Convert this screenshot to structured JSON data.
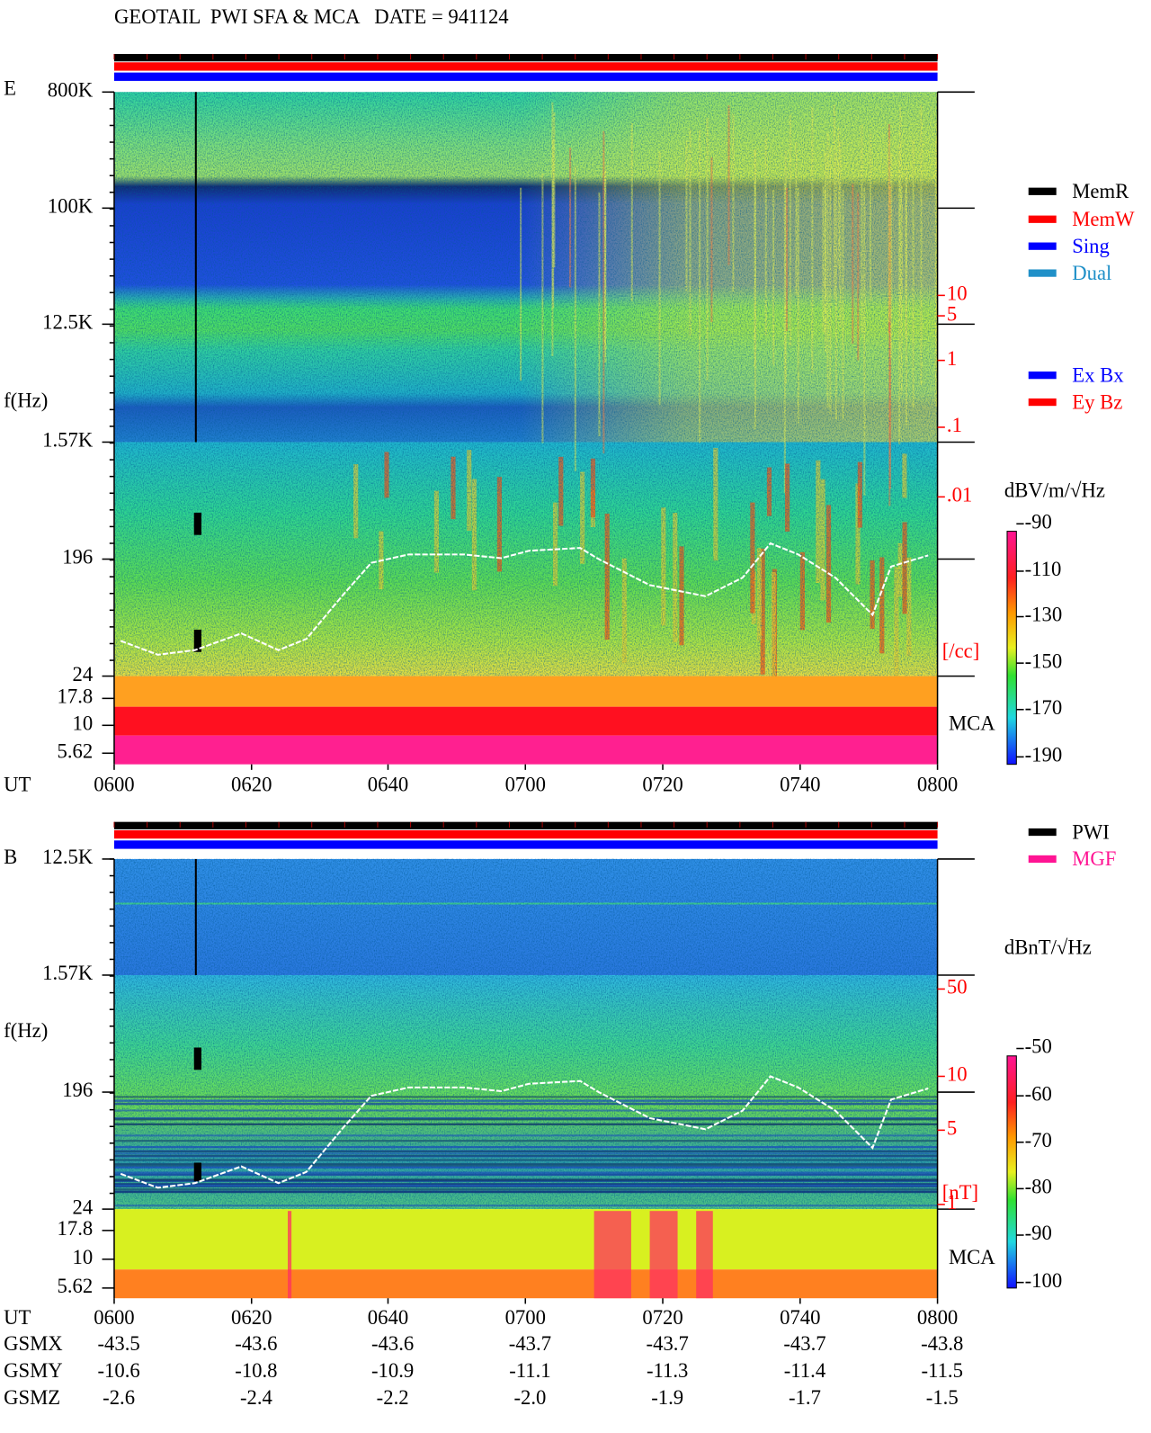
{
  "header": {
    "title": "GEOTAIL  PWI SFA & MCA   DATE = 941124"
  },
  "panels": [
    {
      "label": "E",
      "y_axis_label": "f(Hz)",
      "freq_ticks": [
        "800K",
        "100K",
        "12.5K",
        "1.57K",
        "196",
        "24",
        "17.8",
        "10",
        "5.62"
      ],
      "mca_label": "MCA",
      "right_ticks": [
        "10",
        "5",
        "1",
        ".1",
        ".01"
      ],
      "right_unit": "[/cc]",
      "colorbar_label": "dBV/m/√Hz",
      "colorbar_ticks": [
        "-90",
        "-110",
        "-130",
        "-150",
        "-170",
        "-190"
      ],
      "legend": [
        "MemR",
        "MemW",
        "Sing",
        "Dual",
        "Ex Bx",
        "Ey Bz"
      ]
    },
    {
      "label": "B",
      "y_axis_label": "f(Hz)",
      "freq_ticks": [
        "12.5K",
        "1.57K",
        "196",
        "24",
        "17.8",
        "10",
        "5.62"
      ],
      "mca_label": "MCA",
      "right_ticks": [
        "50",
        "10",
        "5",
        "1"
      ],
      "right_unit": "[nT]",
      "colorbar_label": "dBnT/√Hz",
      "colorbar_ticks": [
        "-50",
        "-60",
        "-70",
        "-80",
        "-90",
        "-100"
      ],
      "legend": [
        "PWI",
        "MGF"
      ]
    }
  ],
  "time_axis": {
    "label": "UT",
    "ticks": [
      "0600",
      "0620",
      "0640",
      "0700",
      "0720",
      "0740",
      "0800"
    ]
  },
  "orbit": {
    "rows": [
      {
        "label": "GSMX",
        "values": [
          "-43.5",
          "-43.6",
          "-43.6",
          "-43.7",
          "-43.7",
          "-43.7",
          "-43.8"
        ]
      },
      {
        "label": "GSMY",
        "values": [
          "-10.6",
          "-10.8",
          "-10.9",
          "-11.1",
          "-11.3",
          "-11.4",
          "-11.5"
        ]
      },
      {
        "label": "GSMZ",
        "values": [
          "-2.6",
          "-2.4",
          "-2.2",
          "-2.0",
          "-1.9",
          "-1.7",
          "-1.5"
        ]
      }
    ]
  }
}
